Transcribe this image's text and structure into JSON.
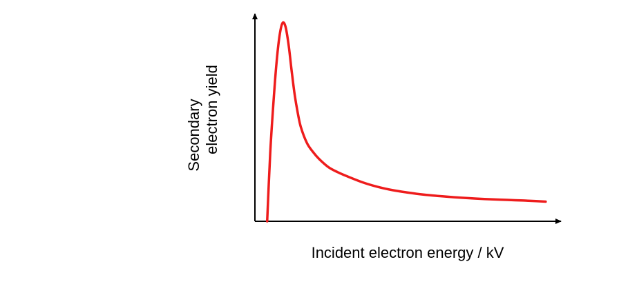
{
  "chart_data": {
    "type": "line",
    "title": "",
    "xlabel": "Incident electron energy / kV",
    "ylabel_lines": [
      "Secondary",
      "electron yield"
    ],
    "xlim": [
      0,
      100
    ],
    "ylim": [
      0,
      100
    ],
    "x_ticks": [],
    "y_ticks": [],
    "grid": false,
    "legend": "none",
    "series": [
      {
        "color": "#ee1c1c",
        "x": [
          4,
          5,
          6,
          7,
          8,
          9,
          10,
          11,
          12,
          13,
          14,
          15,
          17,
          19,
          21,
          24,
          27,
          30,
          35,
          40,
          45,
          50,
          55,
          60,
          65,
          70,
          75,
          80,
          85,
          90,
          95
        ],
        "y": [
          0,
          34,
          58,
          78,
          92,
          98.8,
          97,
          88,
          75,
          63,
          54,
          47,
          39,
          34.5,
          31,
          27,
          24.5,
          22.5,
          19.5,
          17.2,
          15.5,
          14.3,
          13.3,
          12.6,
          12,
          11.5,
          11.1,
          10.8,
          10.5,
          10.2,
          9.8
        ]
      }
    ],
    "axis_color": "#000000"
  }
}
